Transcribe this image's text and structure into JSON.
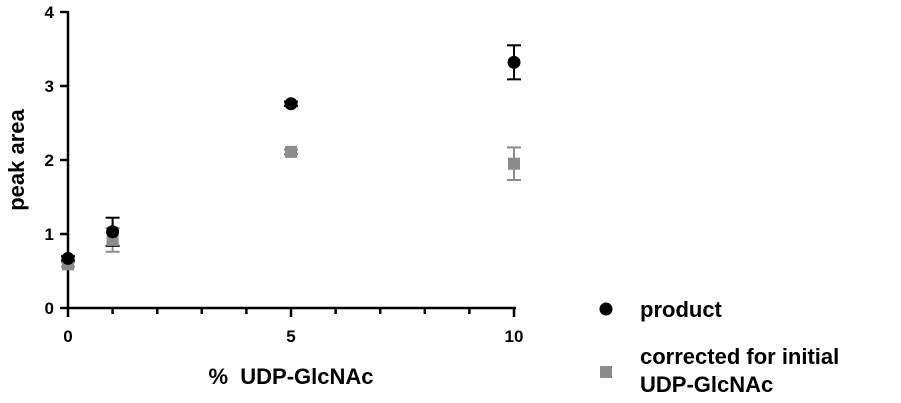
{
  "chart_data": {
    "type": "scatter",
    "title": "",
    "xlabel": "%  UDP-GlcNAc",
    "ylabel": "peak area",
    "xlim": [
      0,
      10
    ],
    "ylim": [
      0,
      4
    ],
    "x_ticks": [
      0,
      5,
      10
    ],
    "x_minor_ticks": [
      1,
      2,
      3,
      4,
      6,
      7,
      8,
      9
    ],
    "y_ticks": [
      0,
      1,
      2,
      3,
      4
    ],
    "grid": false,
    "legend_position": "bottom-right",
    "series": [
      {
        "name": "product",
        "marker": "circle",
        "color": "#000000",
        "points": [
          {
            "x": 0,
            "y": 0.67,
            "err": 0.03
          },
          {
            "x": 1,
            "y": 1.03,
            "err": 0.19
          },
          {
            "x": 5,
            "y": 2.76,
            "err": 0.03
          },
          {
            "x": 10,
            "y": 3.32,
            "err": 0.23
          }
        ]
      },
      {
        "name": "corrected for initial\nUDP-GlcNAc",
        "name_lines": [
          "corrected for initial",
          "UDP-GlcNAc"
        ],
        "marker": "square",
        "color": "#8c8c8c",
        "points": [
          {
            "x": 0,
            "y": 0.59,
            "err": 0.03
          },
          {
            "x": 1,
            "y": 0.92,
            "err": 0.16
          },
          {
            "x": 5,
            "y": 2.11,
            "err": 0.03
          },
          {
            "x": 10,
            "y": 1.95,
            "err": 0.22
          }
        ]
      }
    ]
  }
}
